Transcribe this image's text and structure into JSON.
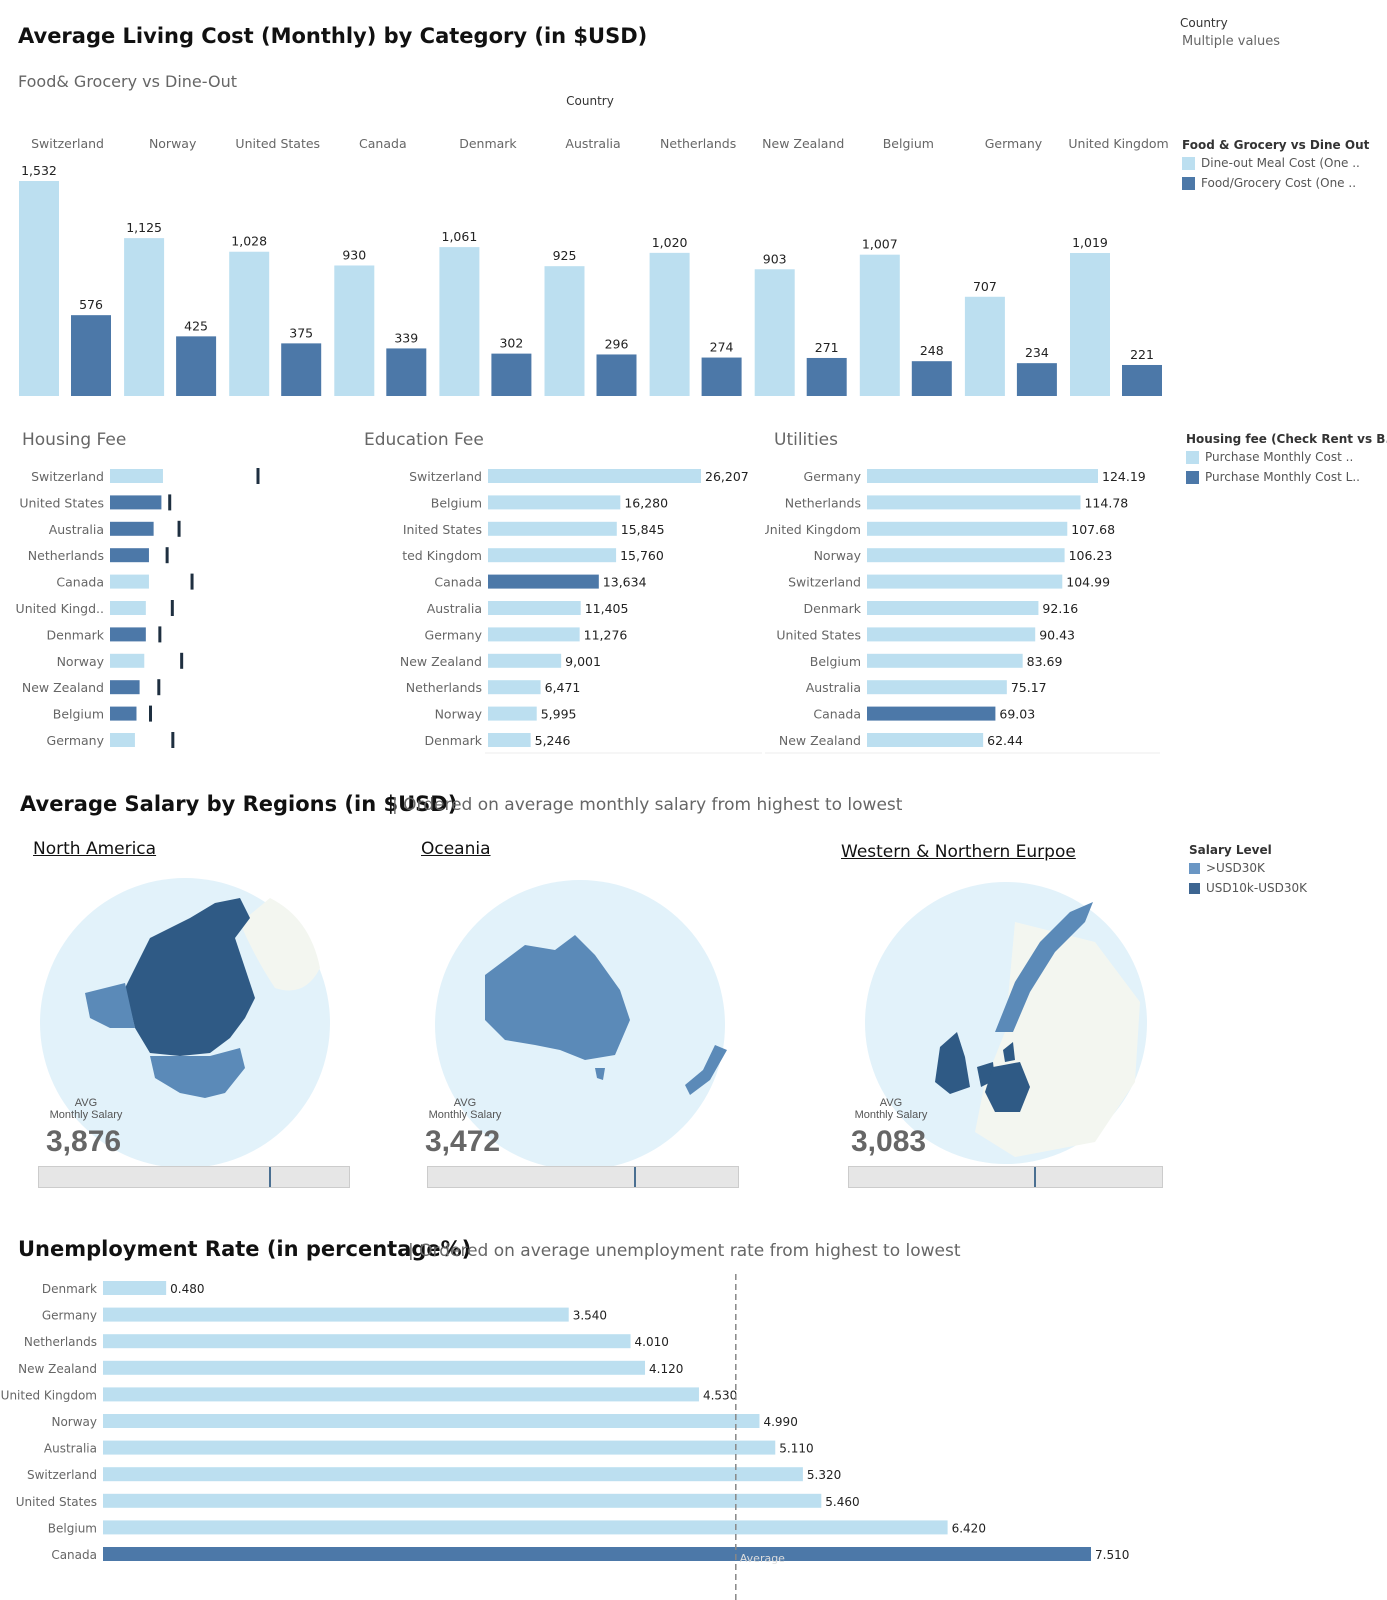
{
  "header": {
    "title": "Average Living Cost (Monthly) by Category (in $USD)",
    "subtitle": "Food& Grocery  vs Dine-Out",
    "country_filter_label": "Country",
    "country_filter_value": "Multiple values"
  },
  "colors": {
    "light": "#bcdff0",
    "dark": "#4c78a8",
    "region_dark": "#2f5a85",
    "region_mid": "#5b8ab8",
    "ocean": "#e2f2fa"
  },
  "chart_data": [
    {
      "type": "bar",
      "title": "Food& Grocery  vs Dine-Out",
      "column_header": "Country",
      "categories": [
        "Switzerland",
        "Norway",
        "United States",
        "Canada",
        "Denmark",
        "Australia",
        "Netherlands",
        "New Zealand",
        "Belgium",
        "Germany",
        "United Kingdom"
      ],
      "series": [
        {
          "name": "Dine-out Meal Cost (One ..",
          "values": [
            1532,
            1125,
            1028,
            930,
            1061,
            925,
            1020,
            903,
            1007,
            707,
            1019
          ]
        },
        {
          "name": "Food/Grocery Cost (One ..",
          "values": [
            576,
            425,
            375,
            339,
            302,
            296,
            274,
            271,
            248,
            234,
            221
          ]
        }
      ],
      "value_labels": [
        [
          "1,532",
          "1,125",
          "1,028",
          "930",
          "1,061",
          "925",
          "1,020",
          "903",
          "1,007",
          "707",
          "1,019"
        ],
        [
          "576",
          "425",
          "375",
          "339",
          "302",
          "296",
          "274",
          "271",
          "248",
          "234",
          "221"
        ]
      ],
      "legend_title": "Food & Grocery vs Dine Out",
      "ylim": [
        0,
        1600
      ]
    },
    {
      "type": "bar",
      "title": "Housing Fee",
      "orientation": "horizontal",
      "categories": [
        "Switzerland",
        "United States",
        "Australia",
        "Netherlands",
        "Canada",
        "United Kingd..",
        "Denmark",
        "Norway",
        "New Zealand",
        "Belgium",
        "Germany"
      ],
      "bar_values": [
        1700,
        1650,
        1400,
        1250,
        1250,
        1150,
        1150,
        1100,
        950,
        850,
        800
      ],
      "reference_values": [
        2850,
        1150,
        1330,
        1100,
        1580,
        1200,
        960,
        1380,
        940,
        780,
        1210
      ],
      "dark_rows": [
        false,
        true,
        true,
        true,
        false,
        false,
        true,
        false,
        true,
        true,
        false
      ],
      "xlim": [
        0,
        3000
      ],
      "legend_title": "Housing fee (Check Rent vs B..",
      "legend_items": [
        "Purchase Monthly Cost ..",
        "Purchase Monthly Cost L.."
      ]
    },
    {
      "type": "bar",
      "title": "Education Fee",
      "orientation": "horizontal",
      "categories": [
        "Switzerland",
        "Belgium",
        "United States",
        "United Kingdom",
        "Canada",
        "Australia",
        "Germany",
        "New Zealand",
        "Netherlands",
        "Norway",
        "Denmark"
      ],
      "category_labels": [
        "Switzerland",
        "Belgium",
        "Inited States",
        "ted Kingdom",
        "Canada",
        "Australia",
        "Germany",
        "New Zealand",
        "Netherlands",
        "Norway",
        "Denmark"
      ],
      "values": [
        26207,
        16280,
        15845,
        15760,
        13634,
        11405,
        11276,
        9001,
        6471,
        5995,
        5246
      ],
      "value_labels": [
        "26,207",
        "16,280",
        "15,845",
        "15,760",
        "13,634",
        "11,405",
        "11,276",
        "9,001",
        "6,471",
        "5,995",
        "5,246"
      ],
      "highlight": "Canada"
    },
    {
      "type": "bar",
      "title": "Utilities",
      "orientation": "horizontal",
      "categories": [
        "Germany",
        "Netherlands",
        "United Kingdom",
        "Norway",
        "Switzerland",
        "Denmark",
        "United States",
        "Belgium",
        "Australia",
        "Canada",
        "New Zealand"
      ],
      "values": [
        124.19,
        114.78,
        107.68,
        106.23,
        104.99,
        92.16,
        90.43,
        83.69,
        75.17,
        69.03,
        62.44
      ],
      "value_labels": [
        "124.19",
        "114.78",
        "107.68",
        "106.23",
        "104.99",
        "92.16",
        "90.43",
        "83.69",
        "75.17",
        "69.03",
        "62.44"
      ],
      "highlight": "Canada"
    },
    {
      "type": "bar",
      "title": "Unemployment Rate (in percentage%)",
      "orientation": "horizontal",
      "categories": [
        "Denmark",
        "Germany",
        "Netherlands",
        "New Zealand",
        "United Kingdom",
        "Norway",
        "Australia",
        "Switzerland",
        "United States",
        "Belgium",
        "Canada"
      ],
      "values": [
        0.48,
        3.54,
        4.01,
        4.12,
        4.53,
        4.99,
        5.11,
        5.32,
        5.46,
        6.42,
        7.51
      ],
      "value_labels": [
        "0.480",
        "3.540",
        "4.010",
        "4.120",
        "4.530",
        "4.990",
        "5.110",
        "5.320",
        "5.460",
        "6.420",
        "7.510"
      ],
      "highlight": "Canada",
      "reference_line": {
        "label": "Average",
        "value": 4.81
      }
    }
  ],
  "salary": {
    "title": "Average Salary by Regions (in $USD)",
    "subtitle": "| Ordered on average monthly salary from highest to lowest",
    "legend_title": "Salary Level",
    "legend_items": [
      ">USD30K",
      "USD10k-USD30K"
    ],
    "regions": [
      {
        "name": "North America",
        "avg_label": "AVG",
        "avg_sub": "Monthly Salary",
        "value": "3,876",
        "slider_position": 0.75
      },
      {
        "name": "Oceania",
        "avg_label": "AVG",
        "avg_sub": "Monthly Salary",
        "value": "3,472",
        "slider_position": 0.67
      },
      {
        "name": "Western & Northern Eurpoe",
        "avg_label": "AVG",
        "avg_sub": "Monthly Salary",
        "value": "3,083",
        "slider_position": 0.6
      }
    ]
  },
  "unemployment": {
    "title": "Unemployment Rate (in percentage%)",
    "subtitle": "| Ordered on average unemployment rate from highest to lowest"
  }
}
